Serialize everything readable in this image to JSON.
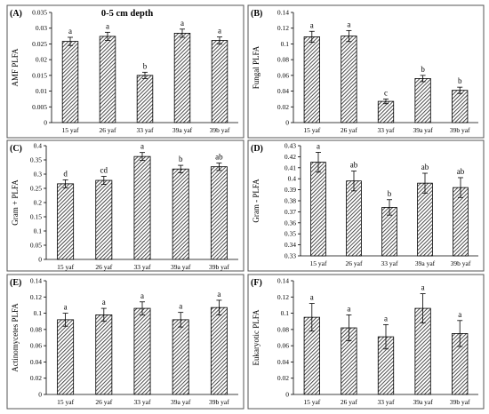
{
  "figure": {
    "depth_title": "0-5 cm depth"
  },
  "colors": {
    "bar_fill": "#ffffff",
    "hatch": "#222222",
    "axis": "#000000",
    "panel_border": "#555555"
  },
  "chart_data": [
    {
      "type": "bar",
      "panel_label": "(A)",
      "ylabel": "AMF PLFA",
      "categories": [
        "15 yaf",
        "26 yaf",
        "33 yaf",
        "39a yaf",
        "39b yaf"
      ],
      "values": [
        0.0258,
        0.0274,
        0.015,
        0.0284,
        0.0261
      ],
      "errors": [
        0.0013,
        0.0013,
        0.001,
        0.0013,
        0.0011
      ],
      "letters": [
        "a",
        "a",
        "b",
        "a",
        "a"
      ],
      "ylim": [
        0,
        0.035
      ],
      "ticks": [
        0,
        0.005,
        0.01,
        0.015,
        0.02,
        0.025,
        0.03,
        0.035
      ],
      "tick_labels": [
        "0",
        "0.005",
        "0.01",
        "0.015",
        "0.02",
        "0.025",
        "0.03",
        "0.035"
      ],
      "grid": false
    },
    {
      "type": "bar",
      "panel_label": "(B)",
      "ylabel": "Fungal PLFA",
      "categories": [
        "15 yaf",
        "26 yaf",
        "33 yaf",
        "39a yaf",
        "39b yaf"
      ],
      "values": [
        0.109,
        0.11,
        0.027,
        0.056,
        0.041
      ],
      "errors": [
        0.007,
        0.007,
        0.003,
        0.004,
        0.004
      ],
      "letters": [
        "a",
        "a",
        "c",
        "b",
        "b"
      ],
      "ylim": [
        0,
        0.14
      ],
      "ticks": [
        0,
        0.02,
        0.04,
        0.06,
        0.08,
        0.1,
        0.12,
        0.14
      ],
      "tick_labels": [
        "0",
        "0.02",
        "0.04",
        "0.06",
        "0.08",
        "0.1",
        "0.12",
        "0.14"
      ],
      "grid": false
    },
    {
      "type": "bar",
      "panel_label": "(C)",
      "ylabel": "Gram + PLFA",
      "categories": [
        "15 yaf",
        "26 yaf",
        "33 yaf",
        "39a yaf",
        "39b yaf"
      ],
      "values": [
        0.266,
        0.278,
        0.362,
        0.318,
        0.326
      ],
      "errors": [
        0.014,
        0.014,
        0.014,
        0.013,
        0.013
      ],
      "letters": [
        "d",
        "cd",
        "a",
        "b",
        "ab"
      ],
      "ylim": [
        0,
        0.4
      ],
      "ticks": [
        0,
        0.05,
        0.1,
        0.15,
        0.2,
        0.25,
        0.3,
        0.35,
        0.4
      ],
      "tick_labels": [
        "0",
        "0.05",
        "0.1",
        "0.15",
        "0.2",
        "0.25",
        "0.3",
        "0.35",
        "0.4"
      ],
      "grid": false
    },
    {
      "type": "bar",
      "panel_label": "(D)",
      "ylabel": "Gram - PLFA",
      "categories": [
        "15 yaf",
        "26 yaf",
        "33 yaf",
        "39a yaf",
        "39b yaf"
      ],
      "values": [
        0.415,
        0.398,
        0.374,
        0.396,
        0.392
      ],
      "errors": [
        0.009,
        0.009,
        0.007,
        0.009,
        0.009
      ],
      "letters": [
        "a",
        "ab",
        "b",
        "ab",
        "ab"
      ],
      "ylim": [
        0.33,
        0.43
      ],
      "ticks": [
        0.33,
        0.34,
        0.35,
        0.36,
        0.37,
        0.38,
        0.39,
        0.4,
        0.41,
        0.42,
        0.43
      ],
      "tick_labels": [
        "0.33",
        "0.34",
        "0.35",
        "0.36",
        "0.37",
        "0.38",
        "0.39",
        "0.4",
        "0.41",
        "0.42",
        "0.43"
      ],
      "grid": false
    },
    {
      "type": "bar",
      "panel_label": "(E)",
      "ylabel": "Actinomycetes PLFA",
      "categories": [
        "15 yaf",
        "26 yaf",
        "33 yaf",
        "39a yaf",
        "39b yaf"
      ],
      "values": [
        0.092,
        0.098,
        0.106,
        0.092,
        0.107
      ],
      "errors": [
        0.008,
        0.008,
        0.008,
        0.009,
        0.009
      ],
      "letters": [
        "a",
        "a",
        "a",
        "a",
        "a"
      ],
      "ylim": [
        0,
        0.14
      ],
      "ticks": [
        0,
        0.02,
        0.04,
        0.06,
        0.08,
        0.1,
        0.12,
        0.14
      ],
      "tick_labels": [
        "0",
        "0.02",
        "0.04",
        "0.06",
        "0.08",
        "0.1",
        "0.12",
        "0.14"
      ],
      "grid": false
    },
    {
      "type": "bar",
      "panel_label": "(F)",
      "ylabel": "Eukaryotic PLFA",
      "categories": [
        "15 yaf",
        "26 yaf",
        "33 yaf",
        "39a yaf",
        "39b yaf"
      ],
      "values": [
        0.095,
        0.082,
        0.071,
        0.106,
        0.075
      ],
      "errors": [
        0.017,
        0.016,
        0.015,
        0.018,
        0.016
      ],
      "letters": [
        "a",
        "a",
        "a",
        "a",
        "a"
      ],
      "ylim": [
        0,
        0.14
      ],
      "ticks": [
        0,
        0.02,
        0.04,
        0.06,
        0.08,
        0.1,
        0.12,
        0.14
      ],
      "tick_labels": [
        "0",
        "0.02",
        "0.04",
        "0.06",
        "0.08",
        "0.1",
        "0.12",
        "0.14"
      ],
      "grid": false
    }
  ]
}
